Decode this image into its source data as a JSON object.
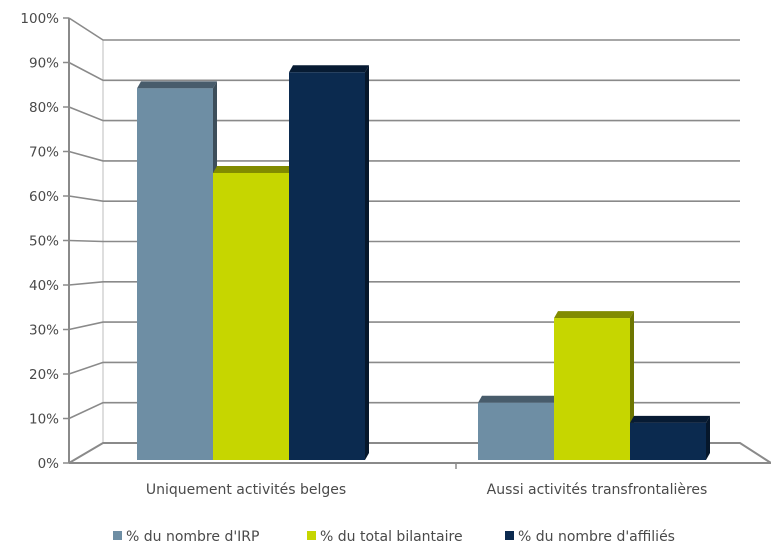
{
  "chart_data": {
    "type": "bar",
    "categories": [
      "Uniquement activités belges",
      "Aussi activités transfrontalières"
    ],
    "series": [
      {
        "name": "% du nombre d'IRP",
        "values": [
          88,
          10
        ],
        "color": "#6e8ea4"
      },
      {
        "name": "% du total bilantaire",
        "values": [
          67,
          31
        ],
        "color": "#c6d600"
      },
      {
        "name": "% du nombre d'affiliés",
        "values": [
          92,
          5
        ],
        "color": "#0b2a4f"
      }
    ],
    "ylim": [
      0,
      100
    ],
    "yticks": [
      "0%",
      "10%",
      "20%",
      "30%",
      "40%",
      "50%",
      "60%",
      "70%",
      "80%",
      "90%",
      "100%"
    ],
    "grid": true,
    "legend_position": "bottom",
    "style": "3d"
  }
}
